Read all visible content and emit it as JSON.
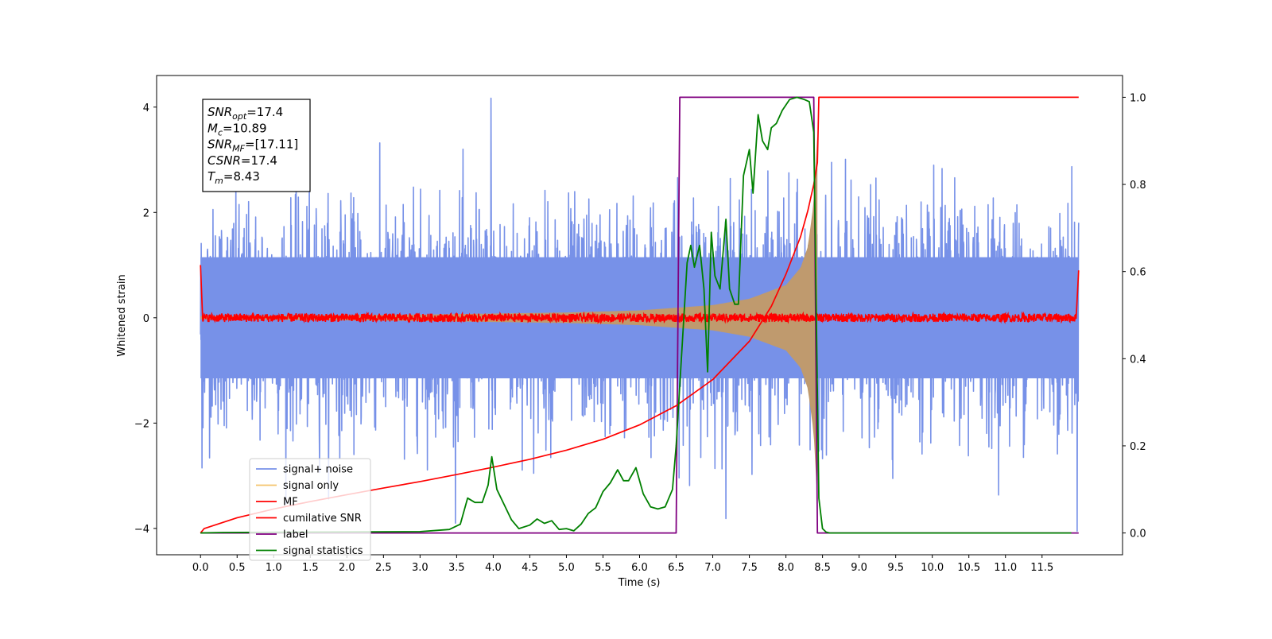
{
  "chart_data": {
    "type": "line",
    "xlabel": "Time (s)",
    "ylabel": "Whitened strain",
    "ylabel_right": "",
    "xlim": [
      -0.6,
      12.6
    ],
    "ylim": [
      -4.5,
      4.6
    ],
    "ylim_right": [
      -0.05,
      1.05
    ],
    "x_ticks": [
      0.0,
      0.5,
      1.0,
      1.5,
      2.0,
      2.5,
      3.0,
      3.5,
      4.0,
      4.5,
      5.0,
      5.5,
      6.0,
      6.5,
      7.0,
      7.5,
      8.0,
      8.5,
      9.0,
      9.5,
      10.0,
      10.5,
      11.0,
      11.5
    ],
    "x_tick_labels": [
      "0.0",
      "0.5",
      "1.0",
      "1.5",
      "2.0",
      "2.5",
      "3.0",
      "3.5",
      "4.0",
      "4.5",
      "5.0",
      "5.5",
      "6.0",
      "6.5",
      "7.0",
      "7.5",
      "8.0",
      "8.5",
      "9.0",
      "9.5",
      "10.0",
      "10.5",
      "11.0",
      "11.5"
    ],
    "y_ticks": [
      -4,
      -2,
      0,
      2,
      4
    ],
    "y_tick_labels": [
      "−4",
      "−2",
      "0",
      "2",
      "4"
    ],
    "y_ticks_right": [
      0.0,
      0.2,
      0.4,
      0.6,
      0.8,
      1.0
    ],
    "y_tick_labels_right": [
      "0.0",
      "0.2",
      "0.4",
      "0.6",
      "0.8",
      "1.0"
    ],
    "grid": false,
    "legend_position": "lower-left",
    "annotation": {
      "position": "upper-left",
      "lines": [
        {
          "name": "SNR",
          "sub": "opt",
          "value": "=17.4"
        },
        {
          "name": "M",
          "sub": "c",
          "value": "=10.89"
        },
        {
          "name": "SNR",
          "sub": "MF",
          "value": "=[17.11]"
        },
        {
          "name": "CSNR",
          "sub": "",
          "value": "=17.4"
        },
        {
          "name": "T",
          "sub": "m",
          "value": "=8.43"
        }
      ]
    },
    "series": [
      {
        "name": "signal+ noise",
        "axis": "left",
        "color": "#7791e8",
        "kind": "noise_band",
        "x_range": [
          0.0,
          12.0
        ],
        "typical_amplitude": 1.3,
        "peak_max": 4.17,
        "peak_min": -4.05
      },
      {
        "name": "signal only",
        "axis": "left",
        "color": "#f5c46b",
        "kind": "chirp_envelope",
        "x_range": [
          0.0,
          8.43
        ],
        "envelope_points": [
          [
            0.0,
            0.03
          ],
          [
            3.0,
            0.06
          ],
          [
            5.0,
            0.1
          ],
          [
            6.0,
            0.14
          ],
          [
            7.0,
            0.24
          ],
          [
            7.5,
            0.36
          ],
          [
            8.0,
            0.62
          ],
          [
            8.2,
            0.95
          ],
          [
            8.3,
            1.35
          ],
          [
            8.38,
            2.2
          ],
          [
            8.43,
            3.5
          ]
        ]
      },
      {
        "name": "MF",
        "axis": "left",
        "color": "#ff0000",
        "kind": "noisy_baseline",
        "x_range": [
          0.0,
          12.0
        ],
        "baseline": 0.0,
        "jitter": 0.08,
        "edge_values": [
          1.0,
          0.9
        ]
      },
      {
        "name": "cumilative SNR",
        "axis": "right",
        "color": "#ff0000",
        "x": [
          0.0,
          0.05,
          0.5,
          1.0,
          1.5,
          2.0,
          2.5,
          3.0,
          3.5,
          4.0,
          4.5,
          5.0,
          5.5,
          6.0,
          6.5,
          7.0,
          7.5,
          7.8,
          8.0,
          8.2,
          8.3,
          8.38,
          8.43,
          8.45,
          8.5,
          9.0,
          10.0,
          11.0,
          11.5,
          12.0
        ],
        "y": [
          0.0,
          0.01,
          0.035,
          0.055,
          0.072,
          0.088,
          0.103,
          0.118,
          0.134,
          0.151,
          0.169,
          0.19,
          0.215,
          0.248,
          0.292,
          0.352,
          0.44,
          0.52,
          0.594,
          0.68,
          0.74,
          0.8,
          0.85,
          1.0,
          1.0,
          1.0,
          1.0,
          1.0,
          1.0,
          1.0
        ]
      },
      {
        "name": "label",
        "axis": "right",
        "color": "#800080",
        "x": [
          0.0,
          6.5,
          6.55,
          8.38,
          8.43,
          12.0
        ],
        "y": [
          0.0,
          0.0,
          1.0,
          1.0,
          0.0,
          0.0
        ]
      },
      {
        "name": "signal statistics",
        "axis": "right",
        "color": "#008000",
        "x": [
          0.0,
          0.3,
          3.0,
          3.4,
          3.55,
          3.65,
          3.75,
          3.85,
          3.93,
          3.98,
          4.05,
          4.15,
          4.25,
          4.35,
          4.5,
          4.6,
          4.7,
          4.8,
          4.9,
          5.0,
          5.1,
          5.2,
          5.3,
          5.4,
          5.5,
          5.6,
          5.7,
          5.78,
          5.85,
          5.95,
          6.05,
          6.15,
          6.25,
          6.35,
          6.45,
          6.5,
          6.55,
          6.6,
          6.65,
          6.7,
          6.75,
          6.82,
          6.88,
          6.93,
          6.98,
          7.03,
          7.1,
          7.18,
          7.23,
          7.3,
          7.35,
          7.42,
          7.5,
          7.55,
          7.62,
          7.68,
          7.75,
          7.8,
          7.87,
          7.95,
          8.05,
          8.15,
          8.25,
          8.32,
          8.38,
          8.45,
          8.5,
          8.55,
          8.6,
          11.9
        ],
        "y": [
          0.0,
          0.001,
          0.003,
          0.008,
          0.02,
          0.08,
          0.07,
          0.07,
          0.11,
          0.175,
          0.1,
          0.065,
          0.03,
          0.01,
          0.018,
          0.032,
          0.022,
          0.028,
          0.008,
          0.01,
          0.005,
          0.02,
          0.045,
          0.058,
          0.095,
          0.115,
          0.145,
          0.12,
          0.12,
          0.15,
          0.09,
          0.06,
          0.055,
          0.06,
          0.1,
          0.2,
          0.34,
          0.48,
          0.62,
          0.66,
          0.61,
          0.66,
          0.56,
          0.37,
          0.69,
          0.59,
          0.56,
          0.72,
          0.56,
          0.525,
          0.525,
          0.82,
          0.88,
          0.78,
          0.96,
          0.9,
          0.88,
          0.93,
          0.94,
          0.97,
          0.995,
          1.0,
          0.995,
          0.99,
          0.92,
          0.08,
          0.01,
          0.002,
          0.0,
          0.0
        ]
      }
    ]
  }
}
